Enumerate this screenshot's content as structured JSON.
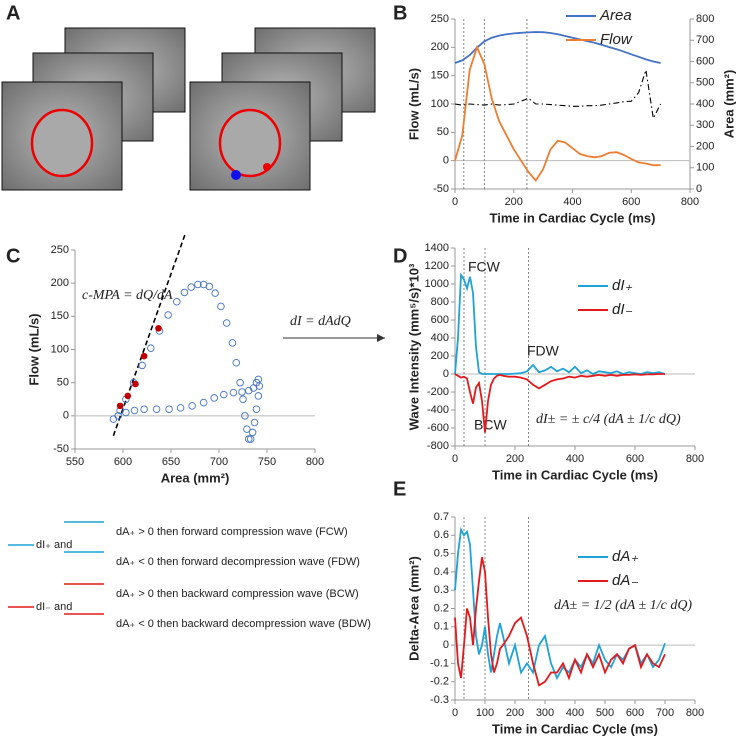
{
  "panel_labels": [
    "A",
    "B",
    "C",
    "D",
    "E"
  ],
  "arrow_label": "dI = dAdQ",
  "notes": [
    {
      "label": "dI₊ and",
      "color": "#1fa2d6",
      "lines": [
        "dA₊ > 0  then forward compression wave (FCW)",
        "dA₊ < 0  then forward decompression wave (FDW)"
      ]
    },
    {
      "label": "dI₋ and",
      "color": "#e31a1c",
      "lines": [
        "dA₊ > 0  then backward compression wave (BCW)",
        "dA₊ < 0  then backward decompression wave (BDW)"
      ]
    }
  ],
  "chart_data": [
    {
      "type": "line",
      "xlabel": "Time in Cardiac Cycle (ms)",
      "ylabel": "Flow (mL/s)",
      "y2label": "Area (mm²)",
      "x": [
        0,
        25,
        50,
        75,
        100,
        125,
        150,
        175,
        200,
        225,
        250,
        275,
        300,
        325,
        350,
        375,
        400,
        425,
        450,
        475,
        500,
        525,
        550,
        575,
        600,
        625,
        650,
        675,
        700
      ],
      "series": [
        {
          "name": "Area",
          "color": "#4472c4",
          "axis": "y2",
          "values": [
            593,
            605,
            630,
            665,
            695,
            712,
            722,
            728,
            732,
            735,
            737,
            739,
            738,
            734,
            728,
            720,
            712,
            704,
            696,
            688,
            678,
            668,
            658,
            646,
            634,
            622,
            610,
            600,
            593
          ]
        },
        {
          "name": "Flow",
          "color": "#ed7d31",
          "values": [
            0,
            45,
            160,
            200,
            170,
            110,
            70,
            45,
            20,
            0,
            -20,
            -35,
            -15,
            20,
            35,
            32,
            22,
            12,
            8,
            6,
            8,
            14,
            15,
            10,
            3,
            -3,
            -5,
            -8,
            -8
          ]
        },
        {
          "color": "#000000",
          "style": "dashdot",
          "values": [
            100,
            98,
            100,
            99,
            98,
            100,
            98,
            99,
            100,
            105,
            110,
            100,
            100,
            99,
            98,
            97,
            96,
            96,
            97,
            97,
            98,
            100,
            102,
            104,
            105,
            120,
            160,
            75,
            100
          ]
        }
      ],
      "xlim": [
        0,
        800
      ],
      "xticks": [
        0,
        200,
        400,
        600,
        800
      ],
      "ylim": [
        -50,
        250
      ],
      "yticks": [
        -50,
        0,
        50,
        100,
        150,
        200,
        250
      ],
      "y2lim": [
        0,
        800
      ],
      "y2ticks": [
        0,
        100,
        200,
        300,
        400,
        500,
        600,
        700,
        800
      ],
      "markers": [
        30,
        100,
        245
      ],
      "grid": false,
      "legend": "upper right"
    },
    {
      "type": "scatter",
      "xlabel": "Area (mm²)",
      "ylabel": "Flow (mL/s)",
      "annotations": [
        "c-MPA = dQ/dA"
      ],
      "x": [
        590,
        595,
        603,
        612,
        622,
        635,
        648,
        660,
        672,
        684,
        695,
        705,
        715,
        724,
        731,
        736,
        739,
        741,
        742,
        741,
        739,
        737,
        735,
        733,
        731,
        729,
        727,
        725,
        722,
        718,
        714,
        708,
        702,
        696,
        690,
        684,
        678,
        671,
        664,
        656,
        647,
        638,
        629,
        620,
        611,
        603,
        597
      ],
      "y": [
        -5,
        0,
        5,
        8,
        10,
        10,
        10,
        12,
        15,
        20,
        27,
        32,
        35,
        36,
        38,
        42,
        50,
        55,
        45,
        30,
        10,
        -10,
        -25,
        -35,
        -35,
        -20,
        0,
        25,
        50,
        80,
        110,
        140,
        165,
        185,
        195,
        198,
        198,
        194,
        186,
        172,
        152,
        128,
        102,
        76,
        50,
        25,
        8
      ],
      "color": "#4472c4",
      "highlight": {
        "x": [
          597,
          605,
          613,
          622,
          637
        ],
        "y": [
          15,
          30,
          48,
          90,
          132
        ],
        "color": "#c00000"
      },
      "fit_line": {
        "x": [
          590,
          665
        ],
        "y": [
          -30,
          275
        ]
      },
      "xlim": [
        550,
        800
      ],
      "xticks": [
        550,
        600,
        650,
        700,
        750,
        800
      ],
      "ylim": [
        -50,
        250
      ],
      "yticks": [
        -50,
        0,
        50,
        100,
        150,
        200,
        250
      ],
      "grid": false
    },
    {
      "type": "line",
      "xlabel": "Time in Cardiac Cycle (ms)",
      "ylabel": "Wave Intensity (mm⁵/s)*10³",
      "annotations": [
        "FCW",
        "FDW",
        "BCW",
        "dI± = ± c/4 (dA ± 1/c dQ)"
      ],
      "x": [
        0,
        10,
        20,
        30,
        40,
        50,
        60,
        70,
        80,
        90,
        100,
        110,
        120,
        130,
        140,
        150,
        160,
        180,
        200,
        220,
        240,
        260,
        280,
        300,
        320,
        340,
        360,
        380,
        400,
        420,
        440,
        460,
        480,
        500,
        520,
        540,
        560,
        580,
        600,
        620,
        640,
        660,
        680,
        700
      ],
      "series": [
        {
          "name": "dI₊",
          "color": "#1fa2d6",
          "values": [
            0,
            400,
            1100,
            1050,
            950,
            1080,
            900,
            300,
            20,
            0,
            0,
            0,
            0,
            0,
            0,
            0,
            0,
            0,
            5,
            10,
            30,
            100,
            20,
            40,
            80,
            30,
            60,
            20,
            80,
            10,
            40,
            0,
            30,
            20,
            10,
            30,
            0,
            20,
            10,
            0,
            20,
            10,
            20,
            0
          ]
        },
        {
          "name": "dI₋",
          "color": "#e31a1c",
          "values": [
            0,
            -20,
            -40,
            -30,
            -50,
            -200,
            -330,
            -150,
            -100,
            -300,
            -650,
            -300,
            -120,
            -50,
            -20,
            -10,
            -20,
            -30,
            -30,
            -40,
            -60,
            -120,
            -160,
            -120,
            -80,
            -60,
            -50,
            -30,
            -40,
            -20,
            -30,
            -20,
            -10,
            -20,
            -10,
            -20,
            -10,
            -10,
            -5,
            -10,
            -5,
            -5,
            0,
            0
          ]
        }
      ],
      "xlim": [
        0,
        800
      ],
      "xticks": [
        0,
        200,
        400,
        600,
        800
      ],
      "ylim": [
        -800,
        1400
      ],
      "yticks": [
        -800,
        -600,
        -400,
        -200,
        0,
        200,
        400,
        600,
        800,
        1000,
        1200,
        1400
      ],
      "markers": [
        30,
        100,
        245
      ],
      "grid": false,
      "legend": "upper right"
    },
    {
      "type": "line",
      "xlabel": "Time in Cardiac Cycle (ms)",
      "ylabel": "Delta-Area (mm²)",
      "annotations": [
        "dA± = 1/2 (dA ± 1/c dQ)"
      ],
      "x": [
        0,
        10,
        20,
        30,
        40,
        50,
        60,
        70,
        80,
        90,
        100,
        110,
        120,
        130,
        140,
        150,
        160,
        180,
        200,
        220,
        240,
        260,
        280,
        300,
        320,
        340,
        360,
        380,
        400,
        420,
        440,
        460,
        480,
        500,
        520,
        540,
        560,
        580,
        600,
        620,
        640,
        660,
        680,
        700
      ],
      "series": [
        {
          "name": "dA₊",
          "color": "#1fa2d6",
          "values": [
            0.3,
            0.5,
            0.63,
            0.6,
            0.62,
            0.55,
            0.3,
            0.05,
            -0.05,
            0,
            0.1,
            -0.05,
            -0.15,
            -0.05,
            0.05,
            0.12,
            0.05,
            -0.1,
            0,
            -0.15,
            -0.1,
            -0.15,
            0,
            0.05,
            -0.1,
            -0.18,
            -0.12,
            -0.15,
            -0.08,
            -0.12,
            -0.05,
            -0.1,
            0,
            -0.08,
            -0.12,
            -0.05,
            -0.08,
            -0.02,
            0,
            -0.1,
            -0.05,
            -0.12,
            -0.08,
            0.01
          ]
        },
        {
          "name": "dA₋",
          "color": "#e31a1c",
          "values": [
            0.15,
            -0.1,
            -0.18,
            0,
            0.2,
            0.15,
            0,
            0.2,
            0.35,
            0.48,
            0.4,
            0.15,
            -0.05,
            -0.15,
            -0.1,
            -0.02,
            0,
            0.05,
            0.12,
            0.15,
            0.05,
            -0.1,
            -0.22,
            -0.2,
            -0.15,
            -0.15,
            -0.1,
            -0.18,
            -0.08,
            -0.15,
            -0.05,
            -0.12,
            -0.05,
            -0.15,
            -0.08,
            -0.05,
            -0.1,
            -0.02,
            0,
            -0.12,
            -0.05,
            -0.1,
            -0.12,
            -0.05
          ]
        }
      ],
      "xlim": [
        0,
        800
      ],
      "xticks": [
        0,
        100,
        200,
        300,
        400,
        500,
        600,
        700,
        800
      ],
      "ylim": [
        -0.3,
        0.7
      ],
      "yticks": [
        -0.3,
        -0.2,
        -0.1,
        0,
        0.1,
        0.2,
        0.3,
        0.4,
        0.5,
        0.6,
        0.7
      ],
      "markers": [
        30,
        100,
        245
      ],
      "grid": false,
      "legend": "upper right"
    }
  ]
}
